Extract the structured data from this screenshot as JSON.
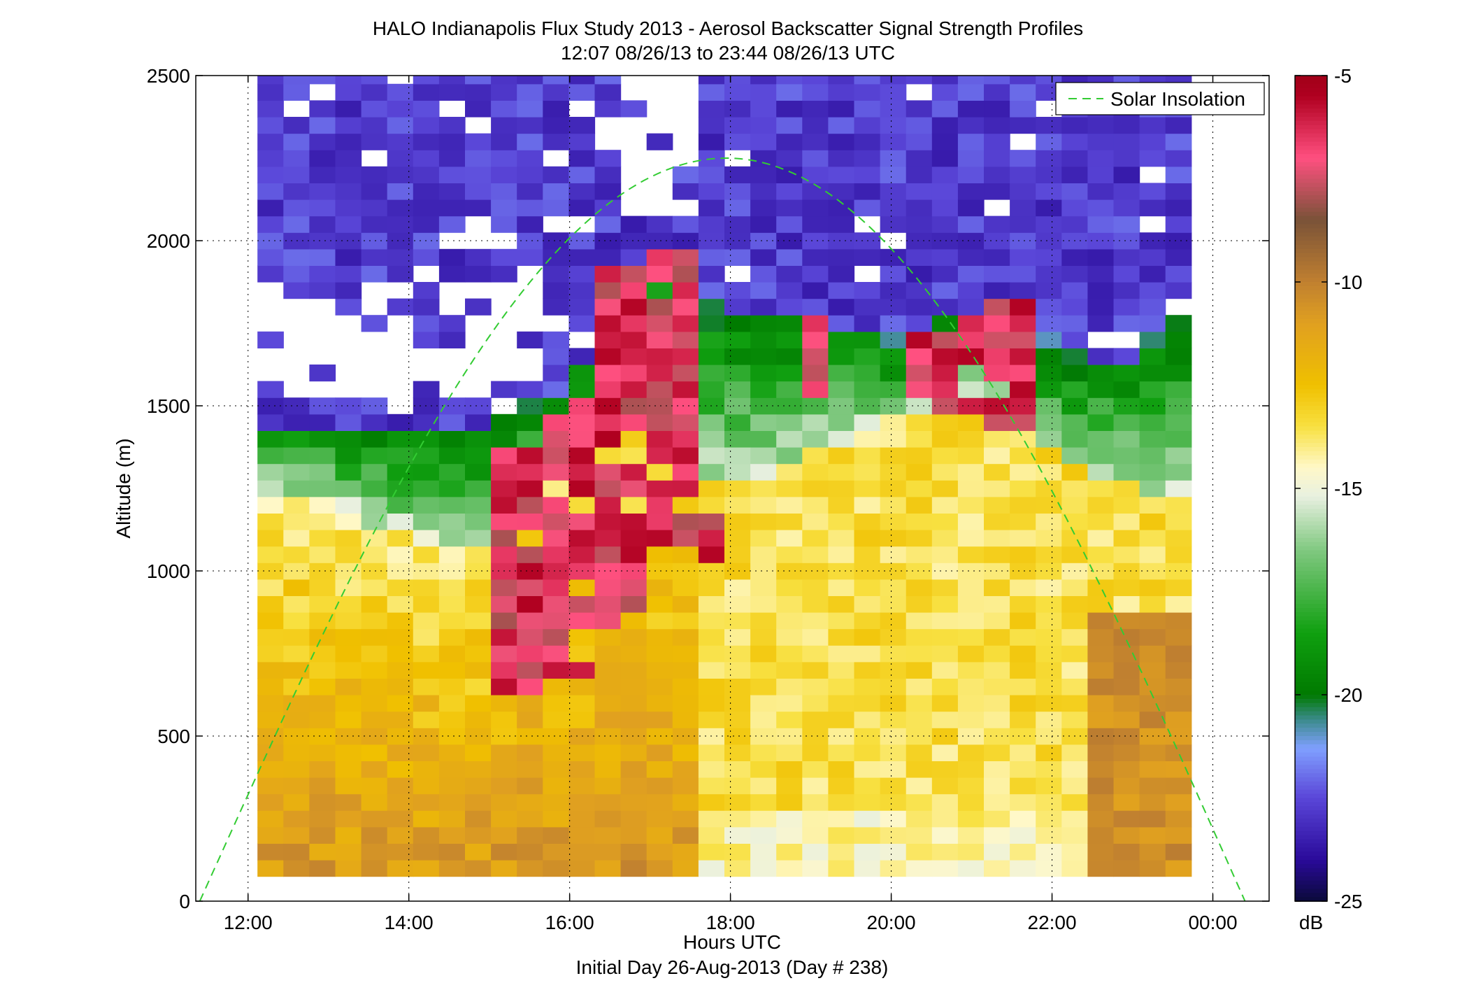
{
  "chart_data": {
    "type": "heatmap",
    "title": "HALO Indianapolis Flux Study 2013 - Aerosol Backscatter Signal Strength Profiles",
    "subtitle": "12:07 08/26/13 to 23:44 08/26/13  UTC",
    "xlabel": "Hours UTC",
    "xlabel2": "Initial Day 26-Aug-2013 (Day # 238)",
    "ylabel": "Altitude (m)",
    "x_ticks": [
      {
        "hour": 12,
        "label": "12:00"
      },
      {
        "hour": 14,
        "label": "14:00"
      },
      {
        "hour": 16,
        "label": "16:00"
      },
      {
        "hour": 18,
        "label": "18:00"
      },
      {
        "hour": 20,
        "label": "20:00"
      },
      {
        "hour": 22,
        "label": "22:00"
      },
      {
        "hour": 24,
        "label": "00:00"
      }
    ],
    "xlim_hours": [
      11.35,
      24.7
    ],
    "y_ticks": [
      0,
      500,
      1000,
      1500,
      2000,
      2500
    ],
    "ylim": [
      0,
      2500
    ],
    "grid": true,
    "legend": {
      "position": "top-right",
      "entries": [
        {
          "label": "Solar Insolation",
          "color": "#33cc33",
          "style": "dashed"
        }
      ]
    },
    "colorbar": {
      "label": "dB",
      "min": -25,
      "max": -5,
      "ticks": [
        -5,
        -10,
        -15,
        -20,
        -25
      ]
    },
    "colormap": [
      {
        "v": -25,
        "c": "#0a0a3a"
      },
      {
        "v": -24,
        "c": "#2a0a9a"
      },
      {
        "v": -22.5,
        "c": "#5a46d8"
      },
      {
        "v": -21.3,
        "c": "#80a0ff"
      },
      {
        "v": -20.6,
        "c": "#3a8a8a"
      },
      {
        "v": -20,
        "c": "#007a00"
      },
      {
        "v": -18.5,
        "c": "#10a010"
      },
      {
        "v": -16.5,
        "c": "#80c880"
      },
      {
        "v": -15.2,
        "c": "#e8f0e0"
      },
      {
        "v": -14.5,
        "c": "#fff8c8"
      },
      {
        "v": -13.5,
        "c": "#f8e040"
      },
      {
        "v": -12.5,
        "c": "#f0c000"
      },
      {
        "v": -11,
        "c": "#e0a020"
      },
      {
        "v": -10,
        "c": "#c08030"
      },
      {
        "v": -8.5,
        "c": "#7a5238"
      },
      {
        "v": -7,
        "c": "#ff5080"
      },
      {
        "v": -5.5,
        "c": "#b00020"
      },
      {
        "v": -5,
        "c": "#a00018"
      }
    ],
    "time_range_hours": [
      12.117,
      23.733
    ],
    "columns": 36,
    "bin_height_m": 50,
    "alt_start_m": 75,
    "alt_end_m": 2500,
    "profile_model": {
      "hours": [
        12.1,
        13.0,
        14.0,
        15.0,
        15.3,
        16.0,
        16.7,
        17.3,
        17.7,
        18.0,
        18.5,
        19.0,
        19.5,
        20.0,
        20.5,
        21.0,
        21.5,
        22.0,
        22.5,
        23.0,
        23.7
      ],
      "boundary_layer_top_m": [
        1250,
        1200,
        1100,
        1100,
        1300,
        1350,
        1600,
        1650,
        1300,
        1250,
        1300,
        1350,
        1400,
        1450,
        1500,
        1550,
        1500,
        1350,
        1300,
        1250,
        1250
      ],
      "residual_layer_top_m": [
        1450,
        1450,
        1450,
        1450,
        1500,
        1550,
        1900,
        1950,
        1850,
        1800,
        1800,
        1750,
        1750,
        1700,
        1750,
        1800,
        1800,
        1700,
        1650,
        1650,
        1800
      ],
      "aerosol_cloud_top_m": [
        0,
        0,
        0,
        0,
        1350,
        1500,
        1900,
        1950,
        1150,
        0,
        0,
        1750,
        0,
        0,
        1700,
        1750,
        1800,
        0,
        0,
        0,
        0
      ],
      "aerosol_cloud_base_m": [
        0,
        0,
        0,
        0,
        650,
        700,
        850,
        1100,
        1050,
        0,
        0,
        1550,
        0,
        0,
        1500,
        1500,
        1450,
        0,
        0,
        0,
        0
      ]
    },
    "solar_insolation_curve": {
      "start_hour": 11.4,
      "peak_hour": 17.95,
      "end_hour": 24.4,
      "peak_altitude_m": 2250
    }
  }
}
